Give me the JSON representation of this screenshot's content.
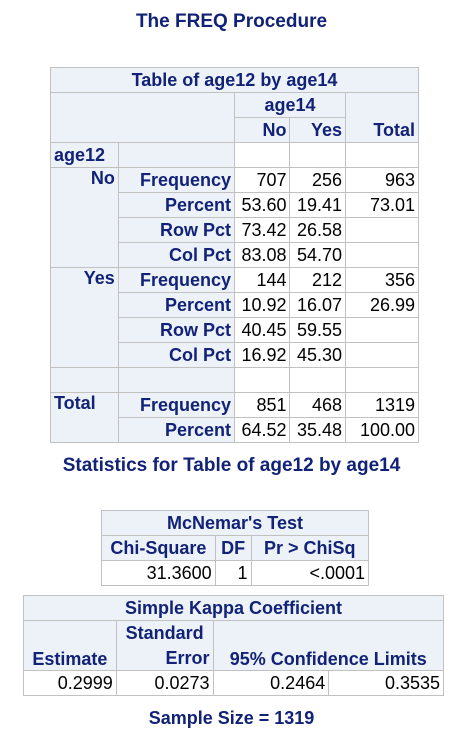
{
  "title": "The FREQ Procedure",
  "crosstab": {
    "caption": "Table of age12 by age14",
    "col_var": "age14",
    "row_var": "age12",
    "col_headers": [
      "No",
      "Yes",
      "Total"
    ],
    "groups": [
      {
        "label": "No",
        "rows": [
          {
            "stat": "Frequency",
            "v1": "707",
            "v2": "256",
            "total": "963"
          },
          {
            "stat": "Percent",
            "v1": "53.60",
            "v2": "19.41",
            "total": "73.01"
          },
          {
            "stat": "Row Pct",
            "v1": "73.42",
            "v2": "26.58",
            "total": ""
          },
          {
            "stat": "Col Pct",
            "v1": "83.08",
            "v2": "54.70",
            "total": ""
          }
        ]
      },
      {
        "label": "Yes",
        "rows": [
          {
            "stat": "Frequency",
            "v1": "144",
            "v2": "212",
            "total": "356"
          },
          {
            "stat": "Percent",
            "v1": "10.92",
            "v2": "16.07",
            "total": "26.99"
          },
          {
            "stat": "Row Pct",
            "v1": "40.45",
            "v2": "59.55",
            "total": ""
          },
          {
            "stat": "Col Pct",
            "v1": "16.92",
            "v2": "45.30",
            "total": ""
          }
        ]
      }
    ],
    "total_group": {
      "label": "Total",
      "rows": [
        {
          "stat": "Frequency",
          "v1": "851",
          "v2": "468",
          "total": "1319"
        },
        {
          "stat": "Percent",
          "v1": "64.52",
          "v2": "35.48",
          "total": "100.00"
        }
      ]
    }
  },
  "stats_title": "Statistics for Table of age12 by age14",
  "mcnemar": {
    "caption": "McNemar's Test",
    "headers": [
      "Chi-Square",
      "DF",
      "Pr > ChiSq"
    ],
    "values": [
      "31.3600",
      "1",
      "<.0001"
    ]
  },
  "kappa": {
    "caption": "Simple Kappa Coefficient",
    "h_estimate": "Estimate",
    "h_se_line1": "Standard",
    "h_se_line2": "Error",
    "h_ci": "95% Confidence Limits",
    "values": [
      "0.2999",
      "0.0273",
      "0.2464",
      "0.3535"
    ]
  },
  "sample_size": "Sample Size = 1319"
}
